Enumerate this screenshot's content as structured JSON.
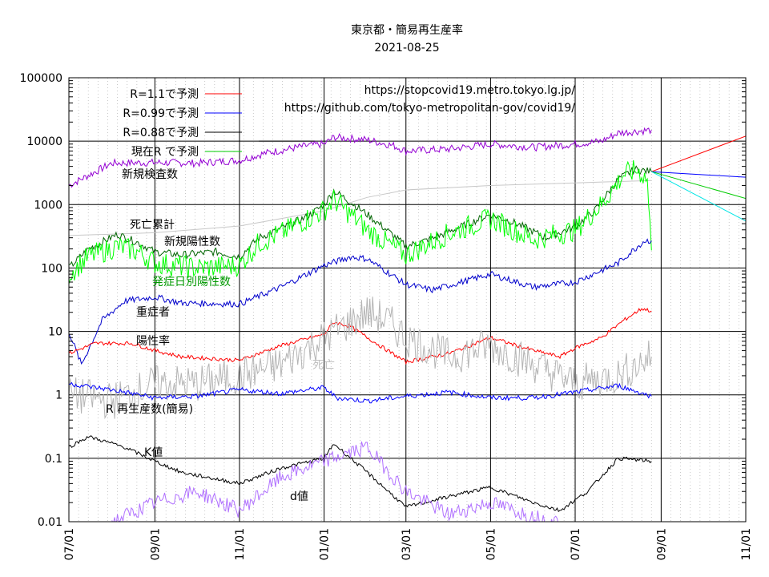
{
  "chart_data": {
    "type": "line",
    "title": "東京都・簡易再生産率",
    "subtitle": "2021-08-25",
    "sources": [
      "https://stopcovid19.metro.tokyo.lg.jp/",
      "https://github.com/tokyo-metropolitan-gov/covid19/"
    ],
    "y_scale": "log",
    "ylim": [
      0.01,
      100000
    ],
    "y_ticks": [
      "100000",
      "10000",
      "1000",
      "100",
      "10",
      "1",
      "0.1",
      "0.01"
    ],
    "xlim": [
      "2020-07-01",
      "2021-11-01"
    ],
    "x_ticks": [
      "07/01",
      "09/01",
      "11/01",
      "01/01",
      "03/01",
      "05/01",
      "07/01",
      "09/01",
      "11/01"
    ],
    "grid": true,
    "legend_position": "top-left",
    "colors": {
      "r_1_1": "#ff0000",
      "r_0_99": "#0000ff",
      "r_0_88": "#000000",
      "current_r": "#00cc00",
      "forecast_extra": "#00e5e5",
      "tests": "#9400d3",
      "deaths_cum": "#c8c8c8",
      "positives": "#006400",
      "onset": "#00ff00",
      "severe": "#0000cc",
      "positivity": "#ff0000",
      "deaths": "#b4b4b4",
      "r_eff": "#0000ff",
      "k": "#000000",
      "d": "#b070ff"
    },
    "legend": [
      {
        "key": "r_1_1",
        "label": "R=1.1で予測"
      },
      {
        "key": "r_0_99",
        "label": "R=0.99で予測"
      },
      {
        "key": "r_0_88",
        "label": "R=0.88で予測"
      },
      {
        "key": "current_r",
        "label": "現在R で予測"
      }
    ],
    "series_labels": [
      {
        "key": "tests",
        "label": "新規検査数",
        "color": "#000000"
      },
      {
        "key": "deaths_cum",
        "label": "死亡累計",
        "color": "#000000"
      },
      {
        "key": "positives",
        "label": "新規陽性数",
        "color": "#000000"
      },
      {
        "key": "onset",
        "label": "発症日別陽性数",
        "color": "#009900"
      },
      {
        "key": "severe",
        "label": "重症者",
        "color": "#000000"
      },
      {
        "key": "positivity",
        "label": "陽性率",
        "color": "#000000"
      },
      {
        "key": "deaths",
        "label": "死亡",
        "color": "#c0c0c0"
      },
      {
        "key": "r_eff",
        "label": "R  再生産数(簡易)",
        "color": "#000000"
      },
      {
        "key": "k",
        "label": "K値",
        "color": "#000000"
      },
      {
        "key": "d",
        "label": "d値",
        "color": "#000000"
      }
    ],
    "series": [
      {
        "key": "tests",
        "color": "#9400d3",
        "noise": 0.06,
        "points": [
          [
            "2020-07-01",
            2000
          ],
          [
            "2020-08-01",
            4500
          ],
          [
            "2020-09-01",
            4600
          ],
          [
            "2020-10-01",
            4500
          ],
          [
            "2020-11-01",
            5000
          ],
          [
            "2020-11-20",
            6500
          ],
          [
            "2020-12-20",
            8500
          ],
          [
            "2021-01-01",
            9000
          ],
          [
            "2021-01-08",
            11500
          ],
          [
            "2021-02-01",
            10500
          ],
          [
            "2021-02-20",
            8500
          ],
          [
            "2021-03-01",
            7000
          ],
          [
            "2021-04-01",
            7500
          ],
          [
            "2021-05-01",
            9000
          ],
          [
            "2021-06-01",
            8000
          ],
          [
            "2021-07-01",
            9000
          ],
          [
            "2021-07-20",
            10000
          ],
          [
            "2021-08-01",
            13500
          ],
          [
            "2021-08-25",
            15000
          ]
        ]
      },
      {
        "key": "deaths_cum",
        "color": "#c8c8c8",
        "noise": 0,
        "points": [
          [
            "2020-07-01",
            325
          ],
          [
            "2020-09-01",
            360
          ],
          [
            "2020-11-01",
            460
          ],
          [
            "2020-12-01",
            600
          ],
          [
            "2021-01-01",
            800
          ],
          [
            "2021-02-01",
            1300
          ],
          [
            "2021-03-01",
            1700
          ],
          [
            "2021-05-01",
            2000
          ],
          [
            "2021-07-01",
            2200
          ],
          [
            "2021-08-25",
            2400
          ]
        ]
      },
      {
        "key": "positives",
        "color": "#006400",
        "noise": 0.06,
        "points": [
          [
            "2020-07-01",
            100
          ],
          [
            "2020-07-15",
            200
          ],
          [
            "2020-08-05",
            340
          ],
          [
            "2020-08-20",
            250
          ],
          [
            "2020-09-01",
            180
          ],
          [
            "2020-09-20",
            160
          ],
          [
            "2020-10-15",
            180
          ],
          [
            "2020-11-01",
            150
          ],
          [
            "2020-11-15",
            300
          ],
          [
            "2020-12-01",
            420
          ],
          [
            "2020-12-20",
            650
          ],
          [
            "2021-01-01",
            1000
          ],
          [
            "2021-01-08",
            1650
          ],
          [
            "2021-01-20",
            1100
          ],
          [
            "2021-02-01",
            700
          ],
          [
            "2021-02-15",
            400
          ],
          [
            "2021-03-01",
            220
          ],
          [
            "2021-03-20",
            290
          ],
          [
            "2021-04-10",
            450
          ],
          [
            "2021-05-01",
            700
          ],
          [
            "2021-05-20",
            500
          ],
          [
            "2021-06-10",
            300
          ],
          [
            "2021-07-01",
            450
          ],
          [
            "2021-07-15",
            800
          ],
          [
            "2021-08-01",
            2500
          ],
          [
            "2021-08-13",
            3600
          ],
          [
            "2021-08-25",
            3300
          ]
        ]
      },
      {
        "key": "onset",
        "color": "#00ff00",
        "noise": 0.18,
        "points": [
          [
            "2020-07-01",
            80
          ],
          [
            "2020-07-15",
            150
          ],
          [
            "2020-08-05",
            220
          ],
          [
            "2020-08-20",
            180
          ],
          [
            "2020-09-01",
            120
          ],
          [
            "2020-10-01",
            100
          ],
          [
            "2020-11-01",
            110
          ],
          [
            "2020-11-15",
            250
          ],
          [
            "2020-12-01",
            350
          ],
          [
            "2020-12-20",
            600
          ],
          [
            "2021-01-01",
            800
          ],
          [
            "2021-01-08",
            1200
          ],
          [
            "2021-01-20",
            700
          ],
          [
            "2021-02-01",
            400
          ],
          [
            "2021-02-15",
            250
          ],
          [
            "2021-03-01",
            160
          ],
          [
            "2021-04-01",
            350
          ],
          [
            "2021-05-01",
            600
          ],
          [
            "2021-06-01",
            280
          ],
          [
            "2021-07-01",
            400
          ],
          [
            "2021-07-20",
            1000
          ],
          [
            "2021-08-05",
            3000
          ],
          [
            "2021-08-15",
            3500
          ],
          [
            "2021-08-22",
            2500
          ],
          [
            "2021-08-23",
            900
          ],
          [
            "2021-08-25",
            190
          ]
        ]
      },
      {
        "key": "severe",
        "color": "#0000cc",
        "noise": 0.05,
        "points": [
          [
            "2020-07-01",
            10
          ],
          [
            "2020-07-10",
            3
          ],
          [
            "2020-07-25",
            15
          ],
          [
            "2020-08-10",
            30
          ],
          [
            "2020-09-01",
            35
          ],
          [
            "2020-09-20",
            28
          ],
          [
            "2020-11-01",
            27
          ],
          [
            "2020-12-01",
            50
          ],
          [
            "2021-01-01",
            110
          ],
          [
            "2021-01-20",
            150
          ],
          [
            "2021-02-01",
            140
          ],
          [
            "2021-03-01",
            55
          ],
          [
            "2021-03-20",
            45
          ],
          [
            "2021-05-01",
            80
          ],
          [
            "2021-06-01",
            50
          ],
          [
            "2021-07-01",
            60
          ],
          [
            "2021-08-01",
            120
          ],
          [
            "2021-08-20",
            270
          ],
          [
            "2021-08-25",
            270
          ]
        ]
      },
      {
        "key": "positivity",
        "color": "#ff0000",
        "noise": 0.03,
        "points": [
          [
            "2020-07-01",
            4.5
          ],
          [
            "2020-07-20",
            6.5
          ],
          [
            "2020-08-15",
            6.5
          ],
          [
            "2020-09-01",
            5
          ],
          [
            "2020-09-20",
            4
          ],
          [
            "2020-11-01",
            3.5
          ],
          [
            "2020-12-01",
            6
          ],
          [
            "2021-01-01",
            9
          ],
          [
            "2021-01-08",
            14
          ],
          [
            "2021-01-20",
            12
          ],
          [
            "2021-02-10",
            6
          ],
          [
            "2021-03-01",
            3.3
          ],
          [
            "2021-04-01",
            4.5
          ],
          [
            "2021-05-01",
            8
          ],
          [
            "2021-06-01",
            5
          ],
          [
            "2021-06-20",
            4
          ],
          [
            "2021-07-01",
            5.5
          ],
          [
            "2021-07-20",
            8
          ],
          [
            "2021-08-05",
            15
          ],
          [
            "2021-08-18",
            23
          ],
          [
            "2021-08-25",
            21
          ]
        ]
      },
      {
        "key": "deaths",
        "color": "#b4b4b4",
        "noise": 0.3,
        "points": [
          [
            "2020-07-01",
            1
          ],
          [
            "2020-08-01",
            0.8
          ],
          [
            "2020-09-01",
            1.5
          ],
          [
            "2020-10-01",
            1.5
          ],
          [
            "2020-11-01",
            2
          ],
          [
            "2020-12-01",
            3
          ],
          [
            "2021-01-01",
            8
          ],
          [
            "2021-02-01",
            20
          ],
          [
            "2021-02-15",
            15
          ],
          [
            "2021-03-01",
            8
          ],
          [
            "2021-04-01",
            4
          ],
          [
            "2021-05-01",
            6
          ],
          [
            "2021-06-01",
            3
          ],
          [
            "2021-07-01",
            1.5
          ],
          [
            "2021-08-01",
            2
          ],
          [
            "2021-08-25",
            4
          ]
        ]
      },
      {
        "key": "r_eff",
        "color": "#0000ff",
        "noise": 0.04,
        "points": [
          [
            "2020-07-01",
            1.5
          ],
          [
            "2020-08-01",
            1.2
          ],
          [
            "2020-09-01",
            0.9
          ],
          [
            "2020-10-01",
            0.95
          ],
          [
            "2020-11-01",
            1.2
          ],
          [
            "2020-12-01",
            1.05
          ],
          [
            "2021-01-01",
            1.3
          ],
          [
            "2021-01-10",
            0.9
          ],
          [
            "2021-02-01",
            0.8
          ],
          [
            "2021-03-01",
            0.95
          ],
          [
            "2021-04-01",
            1.1
          ],
          [
            "2021-05-01",
            0.9
          ],
          [
            "2021-06-01",
            0.9
          ],
          [
            "2021-07-01",
            1.1
          ],
          [
            "2021-08-01",
            1.4
          ],
          [
            "2021-08-25",
            0.95
          ]
        ]
      },
      {
        "key": "k",
        "color": "#000000",
        "noise": 0.03,
        "points": [
          [
            "2020-07-01",
            0.15
          ],
          [
            "2020-07-15",
            0.22
          ],
          [
            "2020-08-10",
            0.15
          ],
          [
            "2020-09-01",
            0.09
          ],
          [
            "2020-09-20",
            0.06
          ],
          [
            "2020-11-01",
            0.04
          ],
          [
            "2020-12-01",
            0.07
          ],
          [
            "2021-01-01",
            0.1
          ],
          [
            "2021-01-08",
            0.17
          ],
          [
            "2021-02-01",
            0.06
          ],
          [
            "2021-03-01",
            0.017
          ],
          [
            "2021-04-01",
            0.025
          ],
          [
            "2021-05-01",
            0.035
          ],
          [
            "2021-06-01",
            0.02
          ],
          [
            "2021-06-20",
            0.015
          ],
          [
            "2021-07-10",
            0.03
          ],
          [
            "2021-08-01",
            0.1
          ],
          [
            "2021-08-25",
            0.09
          ]
        ]
      },
      {
        "key": "d",
        "color": "#b070ff",
        "noise": 0.12,
        "points": [
          [
            "2020-08-01",
            0.01
          ],
          [
            "2020-09-01",
            0.02
          ],
          [
            "2020-10-01",
            0.03
          ],
          [
            "2020-11-01",
            0.015
          ],
          [
            "2020-12-01",
            0.05
          ],
          [
            "2021-01-01",
            0.09
          ],
          [
            "2021-02-01",
            0.15
          ],
          [
            "2021-03-01",
            0.03
          ],
          [
            "2021-04-01",
            0.013
          ],
          [
            "2021-05-01",
            0.02
          ],
          [
            "2021-06-01",
            0.012
          ],
          [
            "2021-06-20",
            0.01
          ]
        ]
      },
      {
        "key": "r_1_1",
        "color": "#ff0000",
        "noise": 0,
        "points": [
          [
            "2021-08-25",
            3300
          ],
          [
            "2021-11-01",
            12000
          ]
        ]
      },
      {
        "key": "r_0_99",
        "color": "#0000ff",
        "noise": 0,
        "points": [
          [
            "2021-08-25",
            3300
          ],
          [
            "2021-11-01",
            2700
          ]
        ]
      },
      {
        "key": "current_r",
        "color": "#00cc00",
        "noise": 0,
        "points": [
          [
            "2021-08-25",
            3300
          ],
          [
            "2021-11-01",
            1250
          ]
        ]
      },
      {
        "key": "forecast_extra",
        "color": "#00e5e5",
        "noise": 0,
        "points": [
          [
            "2021-08-25",
            3300
          ],
          [
            "2021-11-01",
            550
          ]
        ]
      },
      {
        "key": "r_0_88",
        "color": "#000000",
        "noise": 0,
        "points": [
          [
            "2020-11-15",
            10000
          ],
          [
            "2020-12-25",
            10000
          ]
        ]
      }
    ]
  }
}
